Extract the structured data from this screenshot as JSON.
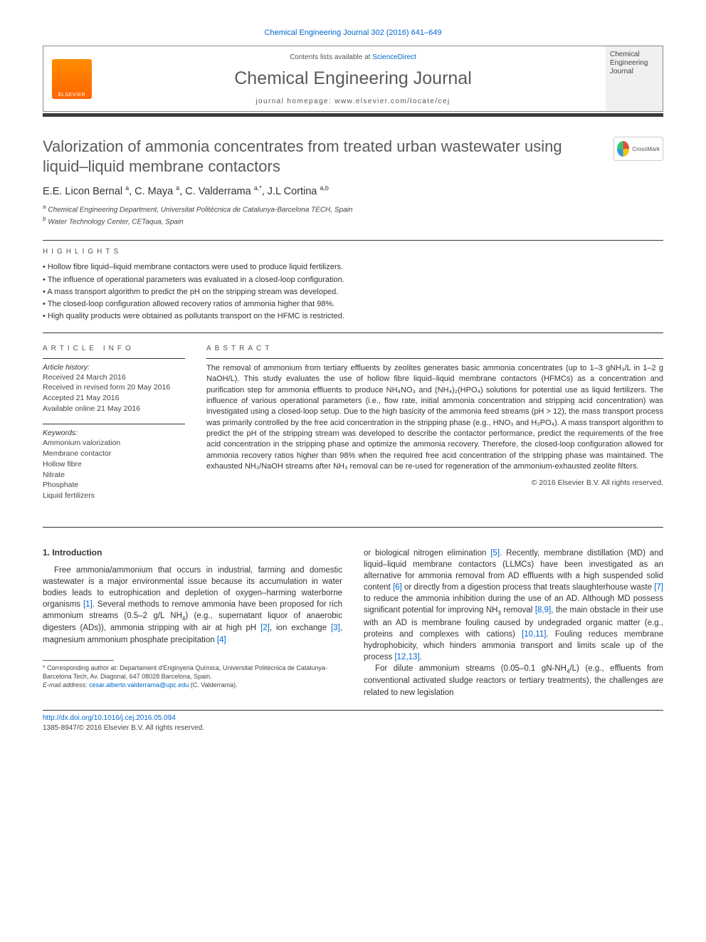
{
  "citation": "Chemical Engineering Journal 302 (2016) 641–649",
  "header": {
    "contents_prefix": "Contents lists available at ",
    "contents_link": "ScienceDirect",
    "journal_name": "Chemical Engineering Journal",
    "homepage_prefix": "journal homepage: ",
    "homepage_url": "www.elsevier.com/locate/cej",
    "publisher_logo_label": "ELSEVIER",
    "cover_l1": "Chemical",
    "cover_l2": "Engineering",
    "cover_l3": "Journal"
  },
  "crossmark_label": "CrossMark",
  "title": "Valorization of ammonia concentrates from treated urban wastewater using liquid–liquid membrane contactors",
  "authors_html": "E.E. Licon Bernal <sup>a</sup>, C. Maya <sup>a</sup>, C. Valderrama <sup>a,*</sup>, J.L Cortina <sup>a,b</sup>",
  "affiliations": {
    "a": "Chemical Engineering Department, Universitat Politècnica de Catalunya-Barcelona TECH, Spain",
    "b": "Water Technology Center, CETaqua, Spain"
  },
  "section_labels": {
    "highlights": "HIGHLIGHTS",
    "article_info": "ARTICLE INFO",
    "abstract": "ABSTRACT"
  },
  "highlights": [
    "Hollow fibre liquid–liquid membrane contactors were used to produce liquid fertilizers.",
    "The influence of operational parameters was evaluated in a closed-loop configuration.",
    "A mass transport algorithm to predict the pH on the stripping stream was developed.",
    "The closed-loop configuration allowed recovery ratios of ammonia higher that 98%.",
    "High quality products were obtained as pollutants transport on the HFMC is restricted."
  ],
  "article_info": {
    "history_heading": "Article history:",
    "history": [
      "Received 24 March 2016",
      "Received in revised form 20 May 2016",
      "Accepted 21 May 2016",
      "Available online 21 May 2016"
    ],
    "keywords_heading": "Keywords:",
    "keywords": [
      "Ammonium valorization",
      "Membrane contactor",
      "Hollow fibre",
      "Nitrate",
      "Phosphate",
      "Liquid fertilizers"
    ]
  },
  "abstract": "The removal of ammonium from tertiary effluents by zeolites generates basic ammonia concentrates (up to 1–3 gNH₃/L in 1–2 g NaOH/L). This study evaluates the use of hollow fibre liquid–liquid membrane contactors (HFMCs) as a concentration and purification step for ammonia effluents to produce NH₄NO₃ and (NH₄)₂(HPO₄) solutions for potential use as liquid fertilizers. The influence of various operational parameters (i.e., flow rate, initial ammonia concentration and stripping acid concentration) was investigated using a closed-loop setup. Due to the high basicity of the ammonia feed streams (pH > 12), the mass transport process was primarily controlled by the free acid concentration in the stripping phase (e.g., HNO₃ and H₃PO₄). A mass transport algorithm to predict the pH of the stripping stream was developed to describe the contactor performance, predict the requirements of the free acid concentration in the stripping phase and optimize the ammonia recovery. Therefore, the closed-loop configuration allowed for ammonia recovery ratios higher than 98% when the required free acid concentration of the stripping phase was maintained. The exhausted NH₃/NaOH streams after NH₃ removal can be re-used for regeneration of the ammonium-exhausted zeolite filters.",
  "abstract_copyright": "© 2016 Elsevier B.V. All rights reserved.",
  "body": {
    "intro_heading": "1. Introduction",
    "col1_p1": "Free ammonia/ammonium that occurs in industrial, farming and domestic wastewater is a major environmental issue because its accumulation in water bodies leads to eutrophication and depletion of oxygen–harming waterborne organisms [1]. Several methods to remove ammonia have been proposed for rich ammonium streams (0.5–2 g/L NH₄) (e.g., supernatant liquor of anaerobic digesters (ADs)), ammonia stripping with air at high pH [2], ion exchange [3], magnesium ammonium phosphate precipitation [4]",
    "col2_p1": "or biological nitrogen elimination [5]. Recently, membrane distillation (MD) and liquid–liquid membrane contactors (LLMCs) have been investigated as an alternative for ammonia removal from AD effluents with a high suspended solid content [6] or directly from a digestion process that treats slaughterhouse waste [7] to reduce the ammonia inhibition during the use of an AD. Although MD possess significant potential for improving NH₃ removal [8,9], the main obstacle in their use with an AD is membrane fouling caused by undegraded organic matter (e.g., proteins and complexes with cations) [10,11]. Fouling reduces membrane hydrophobicity, which hinders ammonia transport and limits scale up of the process [12,13].",
    "col2_p2": "For dilute ammonium streams (0.05–0.1 gN-NH₄/L) (e.g., effluents from conventional activated sludge reactors or tertiary treatments), the challenges are related to new legislation"
  },
  "footnote": {
    "corr": "* Corresponding author at: Departament d'Enginyeria Química, Universitat Politècnica de Catalunya-Barcelona Tech, Av. Diagonal, 647 08028 Barcelona, Spain.",
    "email_label": "E-mail address: ",
    "email": "cesar.alberto.valderrama@upc.edu",
    "email_suffix": " (C. Valderrama)."
  },
  "footer": {
    "doi": "http://dx.doi.org/10.1016/j.cej.2016.05.094",
    "issn_copy": "1385-8947/© 2016 Elsevier B.V. All rights reserved."
  },
  "ref_nums": [
    "[1]",
    "[2]",
    "[3]",
    "[4]",
    "[5]",
    "[6]",
    "[7]",
    "[8,9]",
    "[10,11]",
    "[12,13]"
  ]
}
